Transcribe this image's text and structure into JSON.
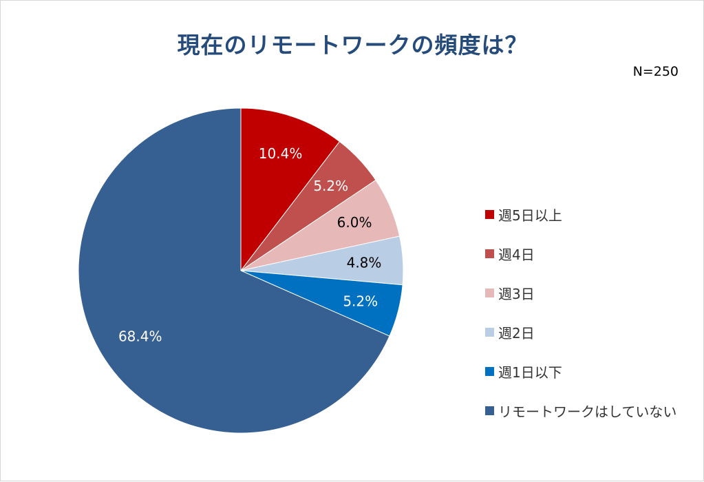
{
  "chart_data": {
    "type": "pie",
    "title": "現在のリモートワークの頻度は？",
    "note": "N=250",
    "categories": [
      "週5日以上",
      "週4日",
      "週3日",
      "週2日",
      "週1日以下",
      "リモートワークはしていない"
    ],
    "values": [
      10.4,
      5.2,
      6.0,
      4.8,
      5.2,
      68.4
    ],
    "labels": [
      "10.4%",
      "5.2%",
      "6.0%",
      "4.8%",
      "5.2%",
      "68.4%"
    ],
    "colors": [
      "#c00000",
      "#c0504d",
      "#e6b9b8",
      "#b9cde5",
      "#0070c0",
      "#376092"
    ],
    "label_colors": [
      "#ffffff",
      "#ffffff",
      "#000000",
      "#000000",
      "#ffffff",
      "#ffffff"
    ],
    "legend_position": "right"
  }
}
